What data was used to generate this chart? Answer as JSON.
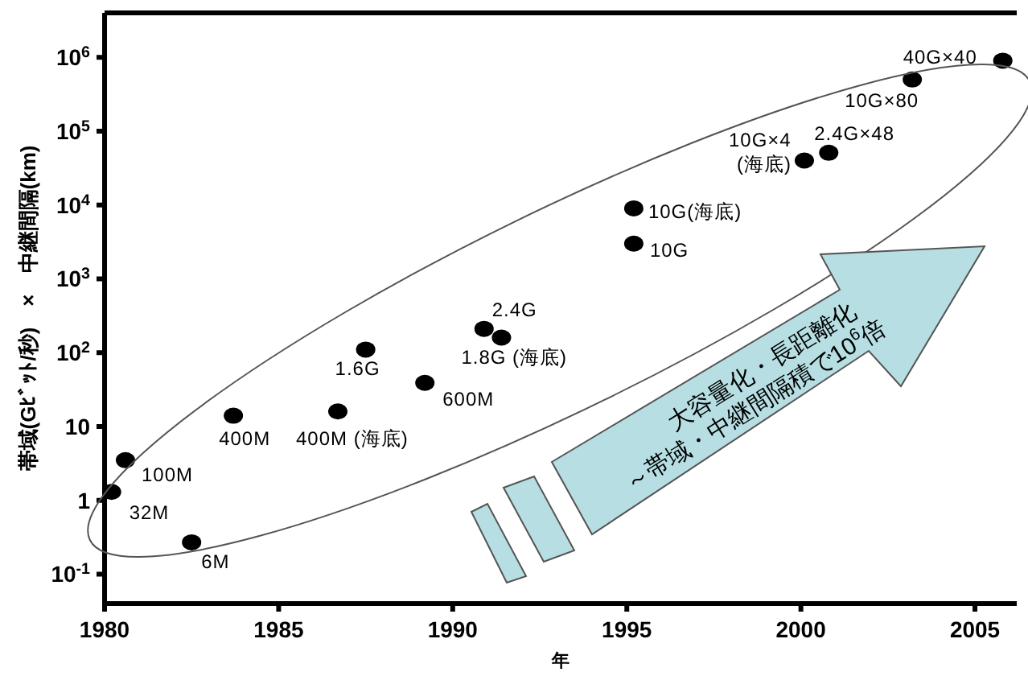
{
  "chart_data": {
    "type": "scatter",
    "xlabel": "年",
    "ylabel": "帯域(Gﾋﾞｯﾄ/秒)　×　中継間隔(km)",
    "xlim": [
      1980,
      2006.2
    ],
    "xticks": [
      1980,
      1985,
      1990,
      1995,
      2000,
      2005
    ],
    "ylim": [
      0.04,
      4000000
    ],
    "yticks": [
      {
        "value": 0.1,
        "label": "10$^{-1}$"
      },
      1,
      10,
      {
        "value": 100,
        "label": "10$^{2}$"
      },
      {
        "value": 1000,
        "label": "10$^{3}$"
      },
      {
        "value": 10000,
        "label": "10$^{4}$"
      },
      {
        "value": 100000,
        "label": "10$^{5}$"
      },
      {
        "value": 1000000,
        "label": "10$^{6}$"
      }
    ],
    "log": true,
    "marker": "circle",
    "grid": false,
    "series": [
      {
        "color": "#000000",
        "x": [
          1980.2,
          1980.6,
          1982.5,
          1983.7,
          1986.7,
          1987.5,
          1989.2,
          1990.9,
          1991.4,
          1995.2,
          1995.2,
          2000.1,
          2000.8,
          2003.2,
          2005.8
        ],
        "values": [
          1.3,
          3.5,
          0.27,
          14,
          16,
          110,
          39,
          210,
          160,
          3000,
          9000,
          40000,
          51000,
          500000,
          900000
        ]
      }
    ],
    "annotations": [
      {
        "text": "32M",
        "x": 1980.2,
        "y": 1.3
      },
      {
        "text": "100M",
        "x": 1980.6,
        "y": 3.5
      },
      {
        "text": "6M",
        "x": 1982.5,
        "y": 0.27
      },
      {
        "text": "400M",
        "x": 1983.7,
        "y": 14
      },
      {
        "text": "400M (海底)",
        "x": 1986.7,
        "y": 16
      },
      {
        "text": "1.6G",
        "x": 1987.5,
        "y": 110
      },
      {
        "text": "600M",
        "x": 1989.2,
        "y": 39
      },
      {
        "text": "2.4G",
        "x": 1990.9,
        "y": 210
      },
      {
        "text": "1.8G (海底)",
        "x": 1991.4,
        "y": 160
      },
      {
        "text": "10G",
        "x": 1995.2,
        "y": 3000
      },
      {
        "text": "10G(海底)",
        "x": 1995.2,
        "y": 9000
      },
      {
        "text": "10G×4",
        "x": 2000.1,
        "y": 40000
      },
      {
        "text": "(海底)",
        "x": 2000.1,
        "y": 40000
      },
      {
        "text": "2.4G×48",
        "x": 2000.8,
        "y": 51000
      },
      {
        "text": "10G×80",
        "x": 2003.2,
        "y": 500000
      },
      {
        "text": "40G×40",
        "x": 2005.8,
        "y": 900000
      },
      "大容量化・長距離化",
      "～帯域・中継間隔積で10$^{6}$倍"
    ]
  }
}
